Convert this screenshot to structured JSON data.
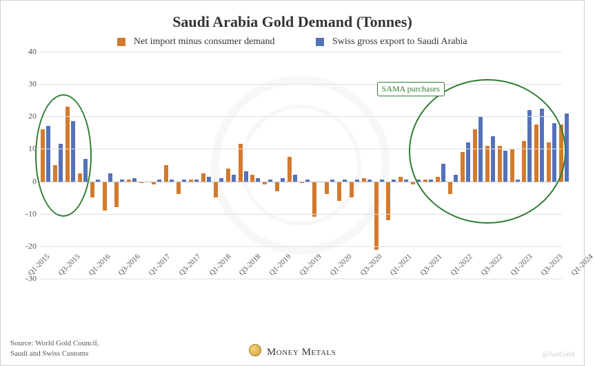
{
  "title": "Saudi Arabia Gold Demand (Tonnes)",
  "legend": {
    "series1": {
      "label": "Net import minus consumer demand",
      "color": "#d37a2e"
    },
    "series2": {
      "label": "Swiss gross export to Saudi Arabia",
      "color": "#5472b8"
    }
  },
  "axes": {
    "y": {
      "min": -30,
      "max": 40,
      "step": 10,
      "gridColor": "#e0e0e0",
      "zeroColor": "#bdbdbd",
      "fontSize": 12
    },
    "x": {
      "labels": [
        "Q1-2015",
        "Q3-2015",
        "Q1-2016",
        "Q3-2016",
        "Q1-2017",
        "Q3-2017",
        "Q1-2018",
        "Q3-2018",
        "Q1-2019",
        "Q3-2019",
        "Q1-2020",
        "Q3-2020",
        "Q1-2021",
        "Q3-2021",
        "Q1-2022",
        "Q3-2022",
        "Q1-2023",
        "Q3-2023",
        "Q1-2024"
      ],
      "fontSize": 11
    }
  },
  "chart": {
    "type": "grouped-bar",
    "barWidthPx": 6,
    "barGapPx": 2,
    "backgroundColor": "#ffffff",
    "series": [
      {
        "name": "Net import minus consumer demand",
        "color": "#d37a2e",
        "values": [
          16,
          5,
          23,
          2.5,
          -5,
          -9,
          -8,
          0.5,
          -0.5,
          -1,
          5,
          -4,
          0.5,
          2.5,
          -5,
          4,
          11.5,
          2,
          -1,
          -3,
          7.5,
          -0.5,
          -11,
          -4,
          -6,
          -5,
          1,
          -21,
          -12,
          1.5,
          -1,
          0.5,
          1.5,
          -4,
          9,
          16,
          11,
          11,
          10,
          12.5,
          17.5,
          12,
          17.5,
          0
        ]
      },
      {
        "name": "Swiss gross export to Saudi Arabia",
        "color": "#5472b8",
        "values": [
          17,
          11.5,
          18.5,
          7,
          0.5,
          2.5,
          0.5,
          1,
          0,
          0.5,
          0.5,
          0.5,
          0.5,
          1.5,
          1,
          2,
          3,
          1,
          0.5,
          1,
          2,
          0.5,
          0,
          0.5,
          0.5,
          0.5,
          0.5,
          0.5,
          0.5,
          0.5,
          0.5,
          0.5,
          5.5,
          2,
          12,
          20,
          14,
          9.5,
          0.5,
          22,
          22.5,
          18,
          21,
          0
        ]
      }
    ]
  },
  "annotation": {
    "text": "SAMA purchases"
  },
  "source": {
    "line1": "Source: World Gold Council,",
    "line2": "Saudi and Swiss Customs"
  },
  "brand": "Money Metals",
  "handle": "@JanGold"
}
